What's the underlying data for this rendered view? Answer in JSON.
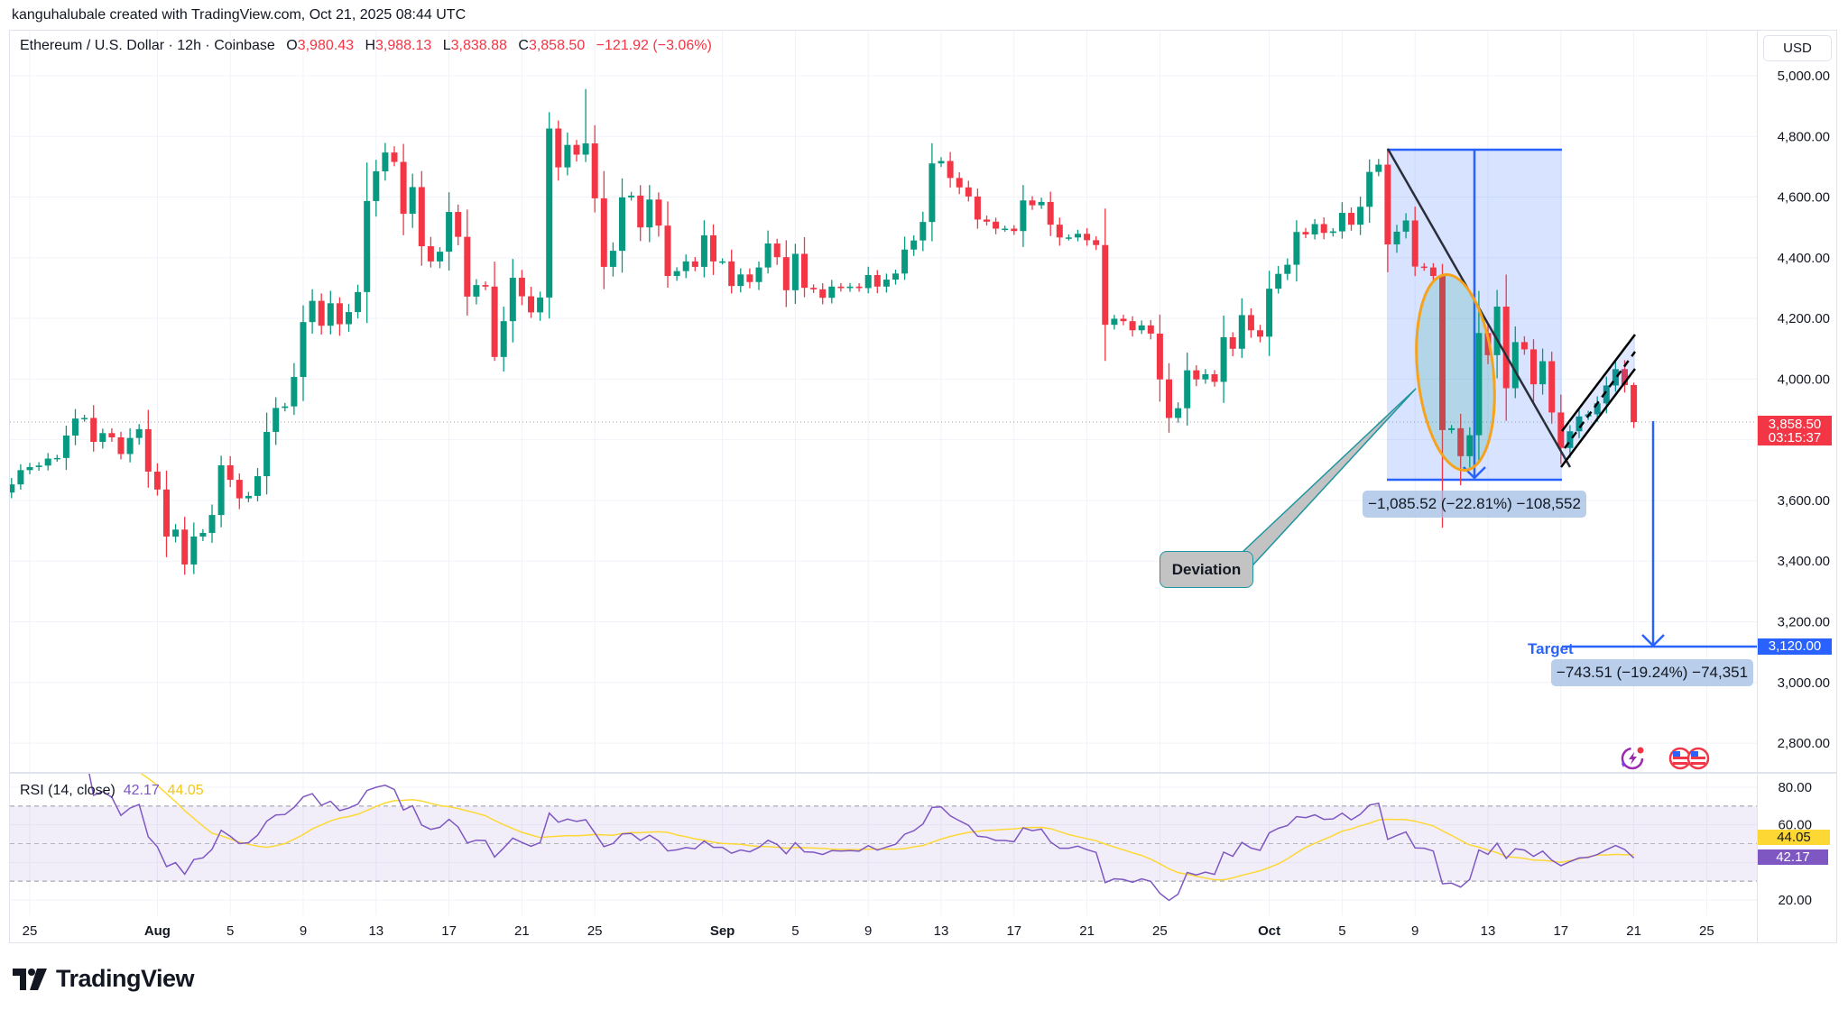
{
  "header": {
    "attribution": "kanguhalubale created with TradingView.com, Oct 21, 2025 08:44 UTC"
  },
  "legend": {
    "symbol": "Ethereum / U.S. Dollar · 12h · Coinbase",
    "o_label": "O",
    "o": "3,980.43",
    "h_label": "H",
    "h": "3,988.13",
    "l_label": "L",
    "l": "3,838.88",
    "c_label": "C",
    "c": "3,858.50",
    "change": "−121.92 (−3.06%)"
  },
  "price_axis": {
    "currency": "USD",
    "ticks": [
      "5,000.00",
      "4,800.00",
      "4,600.00",
      "4,400.00",
      "4,200.00",
      "4,000.00",
      "3,600.00",
      "3,400.00",
      "3,200.00",
      "3,000.00",
      "2,800.00"
    ],
    "last_price": "3,858.50",
    "countdown": "03:15:37",
    "target_price": "3,120.00"
  },
  "rsi": {
    "title": "RSI (14, close)",
    "value": "42.17",
    "ma_value": "44.05",
    "ticks": [
      "80.00",
      "60.00",
      "20.00"
    ],
    "band": [
      30,
      70
    ],
    "ylim": [
      10,
      90
    ]
  },
  "time_axis": {
    "ticks": [
      {
        "label": "25",
        "date": "2025-07-25",
        "bold": false
      },
      {
        "label": "Aug",
        "date": "2025-08-01",
        "bold": true
      },
      {
        "label": "5",
        "date": "2025-08-05",
        "bold": false
      },
      {
        "label": "9",
        "date": "2025-08-09",
        "bold": false
      },
      {
        "label": "13",
        "date": "2025-08-13",
        "bold": false
      },
      {
        "label": "17",
        "date": "2025-08-17",
        "bold": false
      },
      {
        "label": "21",
        "date": "2025-08-21",
        "bold": false
      },
      {
        "label": "25",
        "date": "2025-08-25",
        "bold": false
      },
      {
        "label": "Sep",
        "date": "2025-09-01",
        "bold": true
      },
      {
        "label": "5",
        "date": "2025-09-05",
        "bold": false
      },
      {
        "label": "9",
        "date": "2025-09-09",
        "bold": false
      },
      {
        "label": "13",
        "date": "2025-09-13",
        "bold": false
      },
      {
        "label": "17",
        "date": "2025-09-17",
        "bold": false
      },
      {
        "label": "21",
        "date": "2025-09-21",
        "bold": false
      },
      {
        "label": "25",
        "date": "2025-09-25",
        "bold": false
      },
      {
        "label": "Oct",
        "date": "2025-10-01",
        "bold": true
      },
      {
        "label": "5",
        "date": "2025-10-05",
        "bold": false
      },
      {
        "label": "9",
        "date": "2025-10-09",
        "bold": false
      },
      {
        "label": "13",
        "date": "2025-10-13",
        "bold": false
      },
      {
        "label": "17",
        "date": "2025-10-17",
        "bold": false
      },
      {
        "label": "21",
        "date": "2025-10-21",
        "bold": false
      },
      {
        "label": "25",
        "date": "2025-10-25",
        "bold": false
      }
    ]
  },
  "annotations": {
    "measure_drop": "−1,085.52 (−22.81%) −108,552",
    "deviation": "Deviation",
    "target_label": "Target",
    "measure_target": "−743.51 (−19.24%) −74,351"
  },
  "icons": [
    "lightning-event-icon",
    "us-flag-economic-events-icon"
  ],
  "logo": "TradingView",
  "colors": {
    "up": "#089981",
    "down": "#F23645",
    "drawing_blue": "#2962FF",
    "rsi": "#7E57C2",
    "rsi_ma": "#FDD835",
    "ellipse": "#F7A21B"
  },
  "chart_data": {
    "type": "candlestick",
    "title": "Ethereum / U.S. Dollar · 12h · Coinbase",
    "interval_hours": 12,
    "start": "2025-07-24T00:00:00Z",
    "first_open": 3626,
    "closes": [
      3653,
      3700,
      3710,
      3715,
      3738,
      3740,
      3814,
      3870,
      3872,
      3793,
      3822,
      3808,
      3753,
      3806,
      3835,
      3695,
      3636,
      3481,
      3504,
      3389,
      3481,
      3493,
      3552,
      3716,
      3668,
      3607,
      3615,
      3680,
      3826,
      3905,
      3910,
      4007,
      4188,
      4258,
      4176,
      4250,
      4181,
      4221,
      4287,
      4587,
      4685,
      4747,
      4716,
      4545,
      4633,
      4438,
      4388,
      4420,
      4551,
      4469,
      4272,
      4310,
      4305,
      4073,
      4191,
      4334,
      4273,
      4220,
      4269,
      4826,
      4698,
      4772,
      4740,
      4777,
      4596,
      4370,
      4423,
      4599,
      4605,
      4500,
      4592,
      4506,
      4340,
      4356,
      4388,
      4370,
      4474,
      4388,
      4388,
      4307,
      4345,
      4320,
      4368,
      4447,
      4402,
      4293,
      4413,
      4301,
      4296,
      4268,
      4305,
      4300,
      4305,
      4300,
      4343,
      4305,
      4328,
      4348,
      4427,
      4457,
      4518,
      4711,
      4719,
      4663,
      4632,
      4602,
      4526,
      4519,
      4496,
      4496,
      4488,
      4589,
      4573,
      4584,
      4509,
      4467,
      4467,
      4479,
      4458,
      4442,
      4179,
      4199,
      4191,
      4161,
      4177,
      4150,
      3999,
      3872,
      3904,
      4029,
      3999,
      4016,
      3991,
      4138,
      4100,
      4211,
      4161,
      4140,
      4298,
      4347,
      4377,
      4485,
      4477,
      4511,
      4482,
      4487,
      4548,
      4509,
      4568,
      4683,
      4707,
      4444,
      4486,
      4523,
      4371,
      4368,
      4340,
      3832,
      3838,
      3746,
      3815,
      4152,
      4079,
      4239,
      3970,
      4122,
      4098,
      3983,
      4059,
      3890,
      3773,
      3828,
      3877,
      3884,
      3920,
      3979,
      4033,
      3980.43,
      3858.5
    ],
    "extremes": [
      {
        "candle": 20,
        "low": 3355
      },
      {
        "candle": 54,
        "low": 4060
      },
      {
        "candle": 60,
        "high": 4880,
        "low": 4200
      },
      {
        "candle": 64,
        "high": 4956
      },
      {
        "candle": 121,
        "low": 4060
      },
      {
        "candle": 152,
        "high": 4756
      },
      {
        "candle": 158,
        "high": 4380,
        "low": 3510
      },
      {
        "candle": 160,
        "low": 3650
      },
      {
        "candle": 164,
        "high": 4294
      },
      {
        "candle": 179,
        "high": 3988.13,
        "low": 3838.88
      }
    ],
    "ylim": [
      2700,
      5050
    ],
    "last_price": 3858.5,
    "target_price": 3120,
    "grid": true
  }
}
